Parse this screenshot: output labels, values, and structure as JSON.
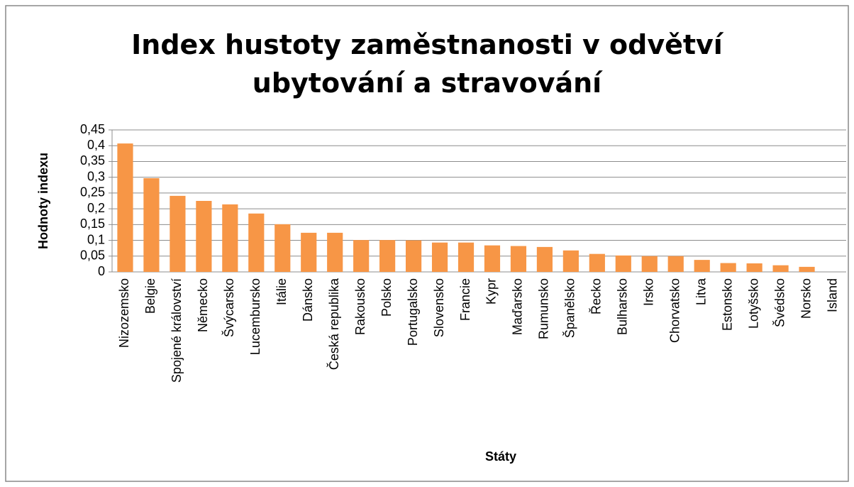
{
  "chart_data": {
    "type": "bar",
    "title": "Index hustoty zaměstnanosti v odvětví ubytování a stravování",
    "x_label": "Státy",
    "y_label": "Hodnoty indexu",
    "categories": [
      "Nizozemsko",
      "Belgie",
      "Spojené království",
      "Německo",
      "Švýcarsko",
      "Lucembursko",
      "Itálie",
      "Dánsko",
      "Česká republika",
      "Rakousko",
      "Polsko",
      "Portugalsko",
      "Slovensko",
      "Francie",
      "Kypr",
      "Maďarsko",
      "Rumunsko",
      "Španělsko",
      "Řecko",
      "Bulharsko",
      "Irsko",
      "Chorvatsko",
      "Litva",
      "Estonsko",
      "Lotyšsko",
      "Švédsko",
      "Norsko",
      "Island"
    ],
    "values": [
      0.407,
      0.297,
      0.241,
      0.225,
      0.214,
      0.185,
      0.151,
      0.124,
      0.124,
      0.101,
      0.101,
      0.1,
      0.093,
      0.093,
      0.084,
      0.082,
      0.079,
      0.068,
      0.057,
      0.052,
      0.05,
      0.05,
      0.038,
      0.028,
      0.027,
      0.021,
      0.016,
      0
    ],
    "color": "#f79646",
    "ylim": [
      0,
      0.45
    ],
    "yticks": [
      0,
      {
        "value": 0.05,
        "label": "0,05"
      },
      {
        "value": 0.1,
        "label": "0,1"
      },
      {
        "value": 0.15,
        "label": "0,15"
      },
      {
        "value": 0.2,
        "label": "0,2"
      },
      {
        "value": 0.25,
        "label": "0,25"
      },
      {
        "value": 0.3,
        "label": "0,3"
      },
      {
        "value": 0.35,
        "label": "0,35"
      },
      {
        "value": 0.4,
        "label": "0,4"
      },
      {
        "value": 0.45,
        "label": "0,45"
      }
    ],
    "grid": true
  }
}
